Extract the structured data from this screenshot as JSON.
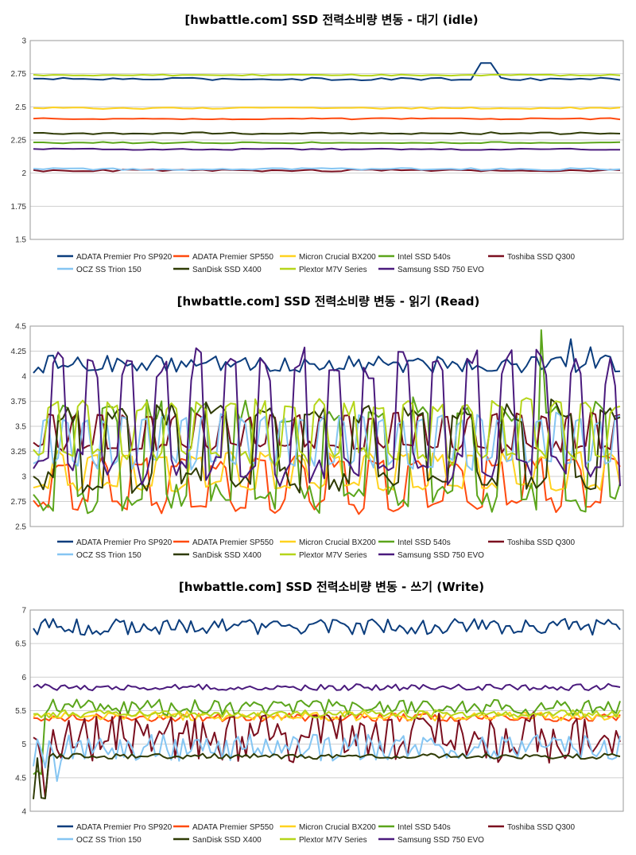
{
  "colors": {
    "ADATA Premier Pro SP920": "#0b3d7d",
    "ADATA Premier SP550": "#ff4a0f",
    "Micron Crucial BX200": "#ffd21f",
    "Intel SSD 540s": "#5ba51b",
    "Toshiba SSD Q300": "#7b0f1f",
    "OCZ SS Trion 150": "#85c5f2",
    "SanDisk SSD X400": "#2f3b05",
    "Plextor M7V Series": "#b5d51a",
    "Samsung SSD 750 EVO": "#4a1a7d"
  },
  "chart_data": [
    {
      "type": "line",
      "title": "[hwbattle.com] SSD 전력소비량 변동 - 대기 (idle)",
      "xlabel": "",
      "ylabel": "",
      "ylim": [
        1.5,
        3
      ],
      "yticks": [
        "1.5",
        "1.75",
        "2",
        "2.25",
        "2.5",
        "2.75",
        "3"
      ],
      "grid": true,
      "legend_position": "bottom",
      "points": 60,
      "series": [
        {
          "name": "ADATA Premier Pro SP920",
          "base": 2.71,
          "jitter": 0.01,
          "spikes": [
            [
              45,
              2.83
            ],
            [
              46,
              2.83
            ],
            [
              47,
              2.72
            ]
          ]
        },
        {
          "name": "ADATA Premier SP550",
          "base": 2.41,
          "jitter": 0.005
        },
        {
          "name": "Micron Crucial BX200",
          "base": 2.49,
          "jitter": 0.006
        },
        {
          "name": "Intel SSD 540s",
          "base": 2.23,
          "jitter": 0.006
        },
        {
          "name": "Toshiba SSD Q300",
          "base": 2.02,
          "jitter": 0.008
        },
        {
          "name": "OCZ SS Trion 150",
          "base": 2.03,
          "jitter": 0.008
        },
        {
          "name": "SanDisk SSD X400",
          "base": 2.3,
          "jitter": 0.008
        },
        {
          "name": "Plextor M7V Series",
          "base": 2.74,
          "jitter": 0.005
        },
        {
          "name": "Samsung SSD 750 EVO",
          "base": 2.18,
          "jitter": 0.005
        }
      ]
    },
    {
      "type": "line",
      "title": "[hwbattle.com] SSD 전력소비량 변동 - 읽기 (Read)",
      "xlabel": "",
      "ylabel": "",
      "ylim": [
        2.5,
        4.5
      ],
      "yticks": [
        "2.5",
        "2.75",
        "3",
        "3.25",
        "3.5",
        "3.75",
        "4",
        "4.25",
        "4.5"
      ],
      "grid": true,
      "legend_position": "bottom",
      "points": 120,
      "series": [
        {
          "name": "ADATA Premier Pro SP920",
          "base": 4.12,
          "jitter": 0.09,
          "spikes": [
            [
              109,
              4.37
            ],
            [
              113,
              4.29
            ]
          ]
        },
        {
          "name": "ADATA Premier SP550",
          "base": 2.92,
          "amp": 0.25,
          "period": 8
        },
        {
          "name": "Micron Crucial BX200",
          "base": 3.05,
          "amp": 0.18,
          "period": 7
        },
        {
          "name": "Intel SSD 540s",
          "base": 3.2,
          "amp": 0.5,
          "period": 9,
          "spikes": [
            [
              103,
              4.46
            ]
          ]
        },
        {
          "name": "Toshiba SSD Q300",
          "base": 3.45,
          "amp": 0.18,
          "period": 5
        },
        {
          "name": "OCZ SS Trion 150",
          "base": 3.35,
          "amp": 0.25,
          "period": 4
        },
        {
          "name": "SanDisk SSD X400",
          "base": 3.3,
          "amp": 0.4,
          "period": 10
        },
        {
          "name": "Plextor M7V Series",
          "base": 3.45,
          "amp": 0.3,
          "period": 6
        },
        {
          "name": "Samsung SSD 750 EVO",
          "base": 3.6,
          "amp": 0.6,
          "period": 7
        }
      ]
    },
    {
      "type": "line",
      "title": "[hwbattle.com] SSD 전력소비량 변동 - 쓰기 (Write)",
      "xlabel": "",
      "ylabel": "",
      "ylim": [
        4,
        7
      ],
      "yticks": [
        "4",
        "4.5",
        "5",
        "5.5",
        "6",
        "6.5",
        "7"
      ],
      "grid": true,
      "legend_position": "bottom",
      "points": 150,
      "series": [
        {
          "name": "ADATA Premier Pro SP920",
          "base": 6.75,
          "jitter": 0.12
        },
        {
          "name": "ADATA Premier SP550",
          "base": 5.4,
          "jitter": 0.06
        },
        {
          "name": "Micron Crucial BX200",
          "base": 5.42,
          "jitter": 0.07
        },
        {
          "name": "Intel SSD 540s",
          "base": 5.55,
          "jitter": 0.12,
          "start": [
            [
              0,
              4.55
            ],
            [
              1,
              4.6
            ],
            [
              2,
              4.55
            ]
          ]
        },
        {
          "name": "Toshiba SSD Q300",
          "base": 5.1,
          "jitter": 0.38,
          "start": [
            [
              0,
              5.1
            ],
            [
              3,
              4.2
            ]
          ]
        },
        {
          "name": "OCZ SS Trion 150",
          "base": 4.95,
          "jitter": 0.2,
          "start": [
            [
              0,
              4.67
            ],
            [
              3,
              4.65
            ],
            [
              6,
              4.45
            ]
          ]
        },
        {
          "name": "SanDisk SSD X400",
          "base": 4.82,
          "jitter": 0.04,
          "start": [
            [
              0,
              4.18
            ],
            [
              2,
              4.2
            ],
            [
              3,
              4.19
            ]
          ]
        },
        {
          "name": "Plextor M7V Series",
          "base": 5.45,
          "jitter": 0.06
        },
        {
          "name": "Samsung SSD 750 EVO",
          "base": 5.85,
          "jitter": 0.05
        }
      ]
    }
  ]
}
